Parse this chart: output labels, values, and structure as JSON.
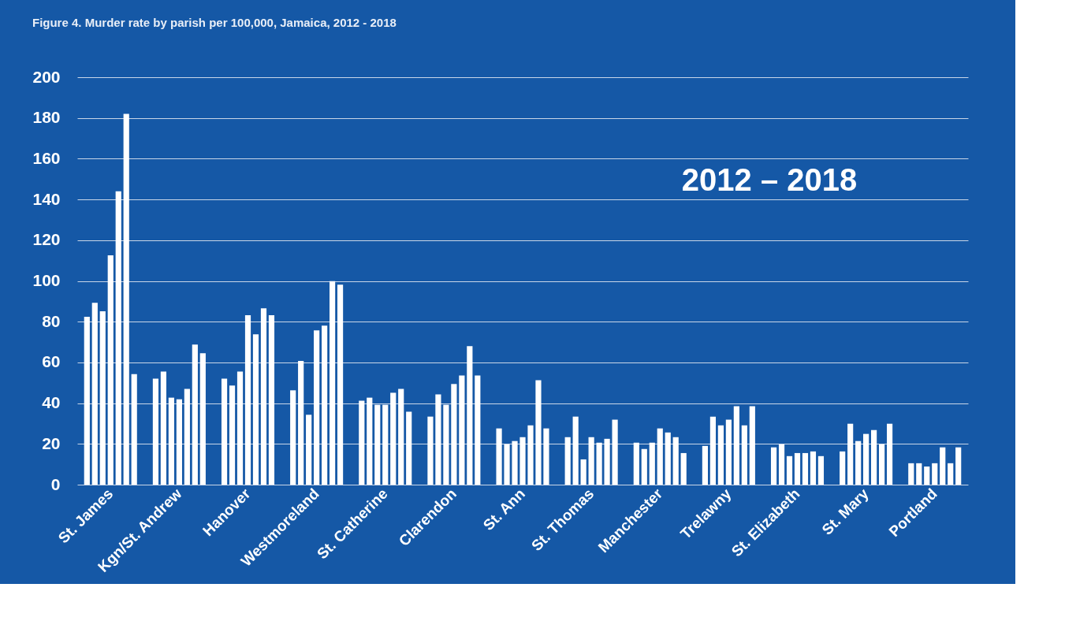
{
  "chart_data": {
    "type": "bar",
    "title": "Figure 4. Murder rate by parish per 100,000, Jamaica, 2012 - 2018",
    "categories": [
      "St. James",
      "Kgn/St. Andrew",
      "Hanover",
      "Westmoreland",
      "St. Catherine",
      "Clarendon",
      "St. Ann",
      "St. Thomas",
      "Manchester",
      "Trelawny",
      "St. Elizabeth",
      "St. Mary",
      "Portland"
    ],
    "series": [
      {
        "color": "#ffffff",
        "values": [
          82.4,
          52.0,
          52.0,
          46.3,
          41.2,
          33.4,
          27.6,
          23.3,
          20.6,
          19.0,
          18.3,
          16.3,
          10.5
        ]
      },
      {
        "color": "#ffffff",
        "values": [
          89.3,
          55.5,
          48.6,
          60.7,
          42.7,
          44.3,
          19.8,
          33.4,
          17.5,
          33.4,
          19.8,
          29.9,
          10.5
        ]
      },
      {
        "color": "#ffffff",
        "values": [
          85.1,
          42.7,
          55.5,
          34.3,
          39.2,
          39.2,
          21.4,
          12.4,
          20.6,
          29.1,
          14.0,
          21.4,
          8.9
        ]
      },
      {
        "color": "#ffffff",
        "values": [
          112.6,
          41.9,
          83.2,
          75.7,
          39.2,
          49.4,
          23.3,
          23.3,
          27.6,
          31.9,
          15.5,
          24.9,
          10.5
        ]
      },
      {
        "color": "#ffffff",
        "values": [
          144.0,
          47.0,
          73.8,
          78.0,
          45.1,
          53.6,
          29.1,
          20.6,
          25.6,
          38.5,
          15.5,
          26.8,
          18.3
        ]
      },
      {
        "color": "#ffffff",
        "values": [
          182.0,
          68.8,
          86.6,
          99.9,
          47.0,
          68.0,
          51.3,
          22.5,
          23.3,
          29.1,
          16.3,
          19.8,
          10.5
        ]
      },
      {
        "color": "#ffffff",
        "values": [
          54.3,
          64.5,
          83.2,
          98.2,
          35.8,
          53.6,
          27.6,
          31.9,
          15.5,
          38.5,
          14.0,
          29.9,
          18.3
        ]
      }
    ],
    "ylim": [
      0,
      200
    ],
    "yticks": [
      0,
      20,
      40,
      60,
      80,
      100,
      120,
      140,
      160,
      180,
      200
    ],
    "grid": "y",
    "annotations": [
      "2012 – 2018"
    ]
  }
}
